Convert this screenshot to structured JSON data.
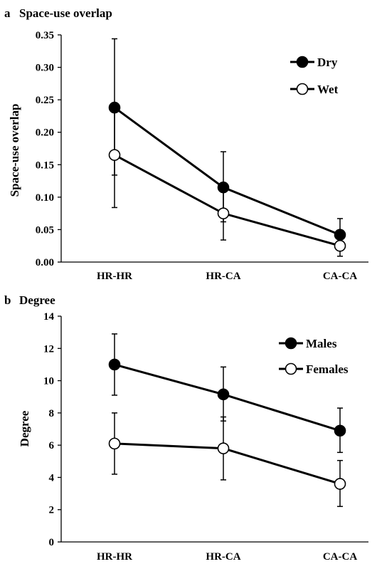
{
  "chart_data": [
    {
      "type": "line",
      "panel_label": "a",
      "title": "Space-use overlap",
      "xlabel": "",
      "ylabel": "Space-use overlap",
      "categories": [
        "HR-HR",
        "HR-CA",
        "CA-CA"
      ],
      "ylim": [
        0,
        0.35
      ],
      "yticks": [
        0.0,
        0.05,
        0.1,
        0.15,
        0.2,
        0.25,
        0.3,
        0.35
      ],
      "ytick_labels": [
        "0.00",
        "0.05",
        "0.10",
        "0.15",
        "0.20",
        "0.25",
        "0.30",
        "0.35"
      ],
      "grid": false,
      "legend_position": "top-right",
      "series": [
        {
          "name": "Dry",
          "marker": "filled",
          "color": "#000000",
          "values": [
            0.238,
            0.115,
            0.042
          ],
          "error_low": [
            0.134,
            0.062,
            0.02
          ],
          "error_high": [
            0.344,
            0.17,
            0.067
          ]
        },
        {
          "name": "Wet",
          "marker": "open",
          "color": "#000000",
          "values": [
            0.165,
            0.075,
            0.025
          ],
          "error_low": [
            0.084,
            0.034,
            0.009
          ],
          "error_high": [
            0.245,
            0.118,
            0.041
          ]
        }
      ]
    },
    {
      "type": "line",
      "panel_label": "b",
      "title": "Degree",
      "xlabel": "",
      "ylabel": "Degree",
      "categories": [
        "HR-HR",
        "HR-CA",
        "CA-CA"
      ],
      "ylim": [
        0,
        14
      ],
      "yticks": [
        0,
        2,
        4,
        6,
        8,
        10,
        12,
        14
      ],
      "ytick_labels": [
        "0",
        "2",
        "4",
        "6",
        "8",
        "10",
        "12",
        "14"
      ],
      "grid": false,
      "legend_position": "top-right",
      "series": [
        {
          "name": "Males",
          "marker": "filled",
          "color": "#000000",
          "values": [
            11.0,
            9.15,
            6.9
          ],
          "error_low": [
            9.1,
            7.5,
            5.55
          ],
          "error_high": [
            12.9,
            10.85,
            8.3
          ]
        },
        {
          "name": "Females",
          "marker": "open",
          "color": "#000000",
          "values": [
            6.1,
            5.8,
            3.6
          ],
          "error_low": [
            4.2,
            3.85,
            2.2
          ],
          "error_high": [
            8.0,
            7.75,
            5.05
          ]
        }
      ]
    }
  ]
}
